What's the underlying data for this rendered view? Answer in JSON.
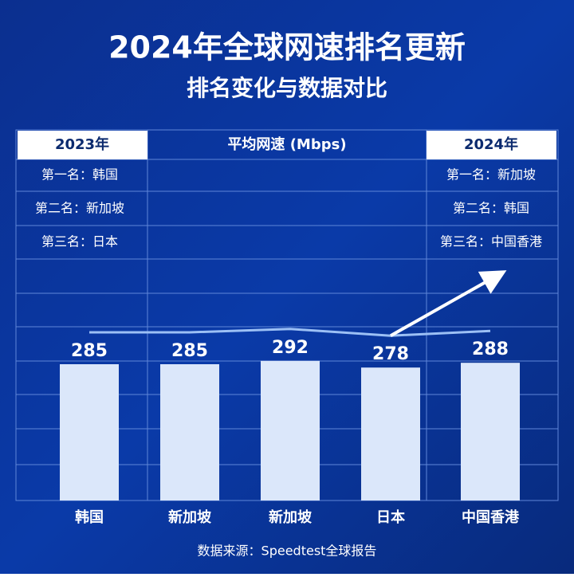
{
  "title": "2024年全球网速排名更新",
  "subtitle": "排名变化与数据对比",
  "table": {
    "headers": [
      "2023年",
      "平均网速 (Mbps)",
      "2024年"
    ],
    "rank_2023": [
      "第一名：韩国",
      "第二名：新加坡",
      "第三名：日本"
    ],
    "rank_2024": [
      "第一名：新加坡",
      "第二名：韩国",
      "第三名：中国香港"
    ]
  },
  "chart_data": {
    "type": "bar",
    "categories": [
      "韩国",
      "新加坡",
      "新加坡",
      "日本",
      "中国香港"
    ],
    "values": [
      285,
      285,
      292,
      278,
      288
    ],
    "color": "#dbe7fa",
    "trend_color": "#9cc0f5"
  },
  "source": "数据来源：Speedtest全球报告"
}
